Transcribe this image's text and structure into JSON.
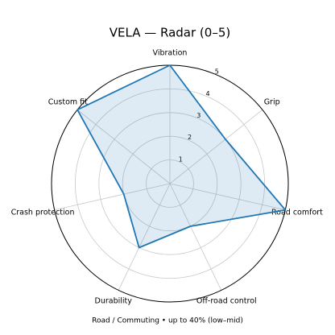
{
  "chart_data": {
    "type": "radar",
    "title": "VELA — Radar (0–5)",
    "subtitle": "Road / Commuting • up to 40% (low–mid)",
    "categories": [
      "Vibration",
      "Grip",
      "Road comfort",
      "Off-road control",
      "Durability",
      "Crash protection",
      "Custom fit"
    ],
    "series": [
      {
        "name": "VELA",
        "color": "#1f77b4",
        "values": [
          5,
          3,
          5,
          2,
          3,
          2,
          5
        ]
      }
    ],
    "rlim": [
      0,
      5
    ],
    "rticks": [
      1,
      2,
      3,
      4,
      5
    ],
    "grid": true
  }
}
